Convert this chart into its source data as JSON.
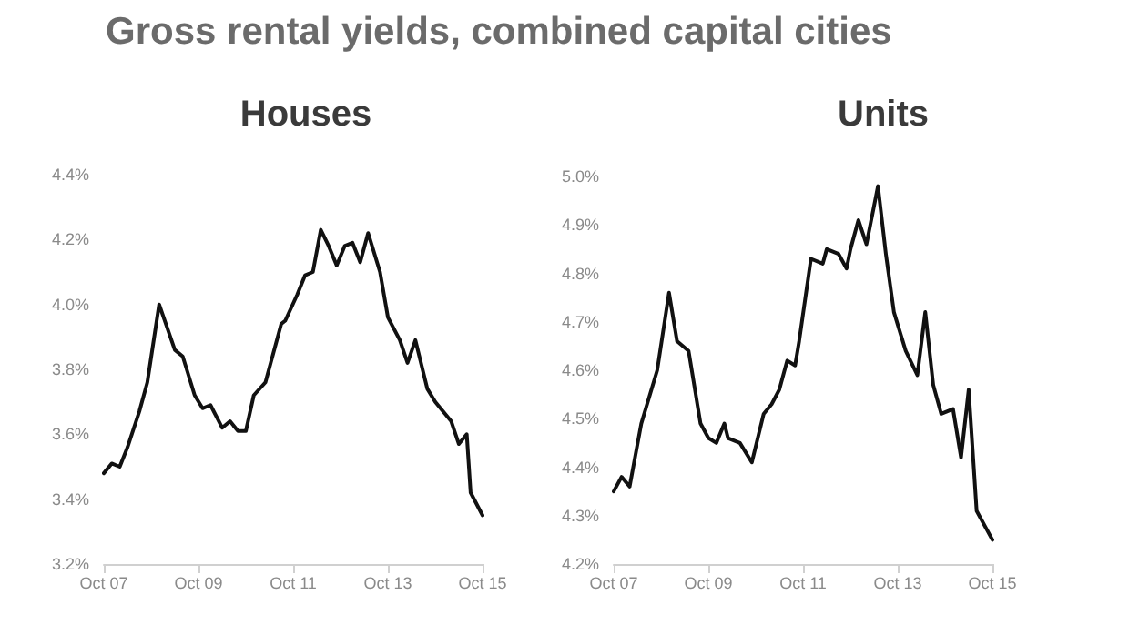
{
  "chart_data": [
    {
      "type": "line",
      "title": "Gross rental yields, combined capital cities",
      "subtitle": "Houses",
      "x": [
        "2007-10",
        "2007-12",
        "2008-02",
        "2008-04",
        "2008-07",
        "2008-09",
        "2008-12",
        "2009-04",
        "2009-06",
        "2009-09",
        "2009-11",
        "2010-01",
        "2010-04",
        "2010-06",
        "2010-08",
        "2010-10",
        "2010-12",
        "2011-03",
        "2011-07",
        "2011-08",
        "2011-11",
        "2012-01",
        "2012-03",
        "2012-05",
        "2012-07",
        "2012-09",
        "2012-11",
        "2013-01",
        "2013-03",
        "2013-05",
        "2013-08",
        "2013-10",
        "2014-01",
        "2014-03",
        "2014-05",
        "2014-08",
        "2014-10",
        "2015-02",
        "2015-04",
        "2015-06",
        "2015-07",
        "2015-10"
      ],
      "series": [
        {
          "color": "#111111",
          "values": [
            3.48,
            3.51,
            3.5,
            3.56,
            3.67,
            3.76,
            4.0,
            3.86,
            3.84,
            3.72,
            3.68,
            3.69,
            3.62,
            3.64,
            3.61,
            3.61,
            3.72,
            3.76,
            3.94,
            3.95,
            4.03,
            4.09,
            4.1,
            4.23,
            4.18,
            4.12,
            4.18,
            4.19,
            4.13,
            4.22,
            4.1,
            3.96,
            3.89,
            3.82,
            3.89,
            3.74,
            3.7,
            3.64,
            3.57,
            3.6,
            3.42,
            3.35
          ]
        }
      ],
      "xlim": [
        "2007-10",
        "2015-10"
      ],
      "xticks": [
        {
          "value": "2007-10",
          "label": "Oct 07"
        },
        {
          "value": "2009-10",
          "label": "Oct 09"
        },
        {
          "value": "2011-10",
          "label": "Oct 11"
        },
        {
          "value": "2013-10",
          "label": "Oct 13"
        },
        {
          "value": "2015-10",
          "label": "Oct 15"
        }
      ],
      "ylim": [
        3.2,
        4.4
      ],
      "yticks": [
        {
          "value": 3.2,
          "label": "3.2%"
        },
        {
          "value": 3.4,
          "label": "3.4%"
        },
        {
          "value": 3.6,
          "label": "3.6%"
        },
        {
          "value": 3.8,
          "label": "3.8%"
        },
        {
          "value": 4.0,
          "label": "4.0%"
        },
        {
          "value": 4.2,
          "label": "4.2%"
        },
        {
          "value": 4.4,
          "label": "4.4%"
        }
      ],
      "grid": false,
      "marker": "none",
      "line_style": "solid"
    },
    {
      "type": "line",
      "subtitle": "Units",
      "x": [
        "2007-10",
        "2007-12",
        "2008-02",
        "2008-05",
        "2008-09",
        "2008-12",
        "2009-02",
        "2009-05",
        "2009-08",
        "2009-10",
        "2009-12",
        "2010-02",
        "2010-03",
        "2010-06",
        "2010-09",
        "2010-12",
        "2011-02",
        "2011-04",
        "2011-06",
        "2011-08",
        "2011-09",
        "2011-12",
        "2012-03",
        "2012-04",
        "2012-07",
        "2012-09",
        "2012-10",
        "2012-12",
        "2013-02",
        "2013-05",
        "2013-07",
        "2013-09",
        "2013-12",
        "2014-03",
        "2014-05",
        "2014-07",
        "2014-09",
        "2014-12",
        "2015-02",
        "2015-04",
        "2015-06",
        "2015-10"
      ],
      "series": [
        {
          "color": "#111111",
          "values": [
            4.35,
            4.38,
            4.36,
            4.49,
            4.6,
            4.76,
            4.66,
            4.64,
            4.49,
            4.46,
            4.45,
            4.49,
            4.46,
            4.45,
            4.41,
            4.51,
            4.53,
            4.56,
            4.62,
            4.61,
            4.66,
            4.83,
            4.82,
            4.85,
            4.84,
            4.81,
            4.85,
            4.91,
            4.86,
            4.98,
            4.84,
            4.72,
            4.64,
            4.59,
            4.72,
            4.57,
            4.51,
            4.52,
            4.42,
            4.56,
            4.31,
            4.25
          ]
        }
      ],
      "xlim": [
        "2007-10",
        "2015-10"
      ],
      "xticks": [
        {
          "value": "2007-10",
          "label": "Oct 07"
        },
        {
          "value": "2009-10",
          "label": "Oct 09"
        },
        {
          "value": "2011-10",
          "label": "Oct 11"
        },
        {
          "value": "2013-10",
          "label": "Oct 13"
        },
        {
          "value": "2015-10",
          "label": "Oct 15"
        }
      ],
      "ylim": [
        4.2,
        5.0
      ],
      "yticks": [
        {
          "value": 4.2,
          "label": "4.2%"
        },
        {
          "value": 4.3,
          "label": "4.3%"
        },
        {
          "value": 4.4,
          "label": "4.4%"
        },
        {
          "value": 4.5,
          "label": "4.5%"
        },
        {
          "value": 4.6,
          "label": "4.6%"
        },
        {
          "value": 4.7,
          "label": "4.7%"
        },
        {
          "value": 4.8,
          "label": "4.8%"
        },
        {
          "value": 4.9,
          "label": "4.9%"
        },
        {
          "value": 5.0,
          "label": "5.0%"
        }
      ],
      "grid": false,
      "marker": "none",
      "line_style": "solid"
    }
  ]
}
